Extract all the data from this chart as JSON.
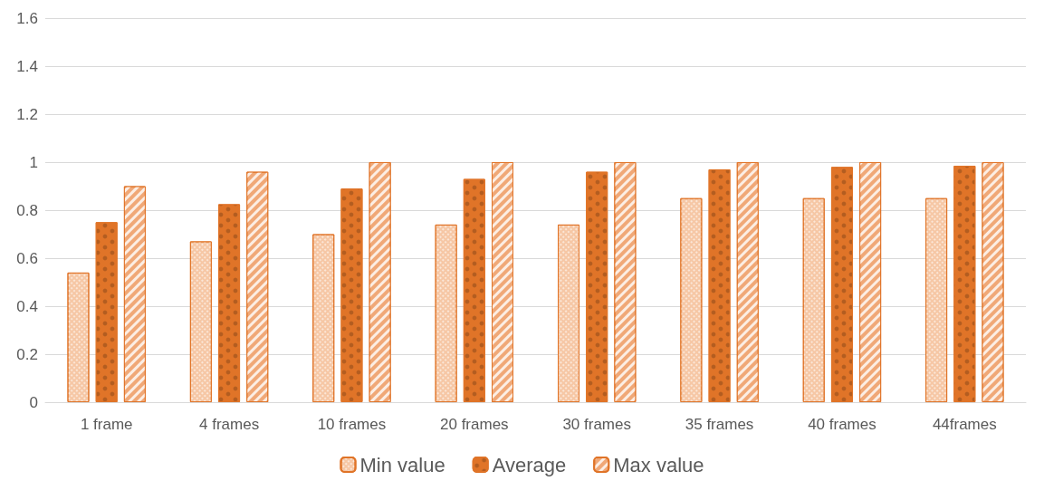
{
  "chart_data": {
    "type": "bar",
    "categories": [
      "1 frame",
      "4 frames",
      "10 frames",
      "20 frames",
      "30 frames",
      "35 frames",
      "40 frames",
      "44frames"
    ],
    "series": [
      {
        "name": "Min value",
        "color": "#f6c7a5",
        "values": [
          0.54,
          0.67,
          0.7,
          0.74,
          0.74,
          0.85,
          0.85,
          0.85
        ]
      },
      {
        "name": "Average",
        "color": "#e07428",
        "values": [
          0.75,
          0.825,
          0.89,
          0.93,
          0.96,
          0.97,
          0.98,
          0.985
        ]
      },
      {
        "name": "Max value",
        "color": "#f0a877",
        "values": [
          0.9,
          0.96,
          1,
          1,
          1,
          1,
          1,
          1
        ]
      }
    ],
    "ylim": [
      0,
      1.6
    ],
    "yticks": [
      0,
      0.2,
      0.4,
      0.6,
      0.8,
      1,
      1.2,
      1.4,
      1.6
    ],
    "grid": "y",
    "legend": "bottom"
  }
}
